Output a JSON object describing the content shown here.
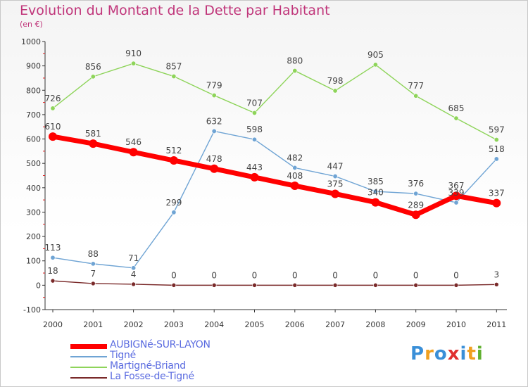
{
  "title": "Evolution du Montant de la Dette par Habitant",
  "subtitle": "(en €)",
  "logo": {
    "letters": [
      "P",
      "r",
      "o",
      "x",
      "i",
      "t",
      "i"
    ],
    "colors": [
      "#3a8fd8",
      "#f0a020",
      "#3a8fd8",
      "#e03030",
      "#3a8fd8",
      "#f0a020",
      "#60b030"
    ]
  },
  "chart_data": {
    "type": "line",
    "x": [
      "2000",
      "2001",
      "2002",
      "2003",
      "2004",
      "2005",
      "2006",
      "2007",
      "2008",
      "2009",
      "2010",
      "2011"
    ],
    "ylim": [
      -100,
      1000
    ],
    "yticks": [
      "-100",
      "0",
      "100",
      "200",
      "300",
      "400",
      "500",
      "600",
      "700",
      "800",
      "900",
      "1000"
    ],
    "grid": false,
    "legend_position": "bottom-left",
    "series": [
      {
        "name": "AUBIGNé-SUR-LAYON",
        "color": "#ff0000",
        "values": [
          610,
          581,
          546,
          512,
          478,
          443,
          408,
          375,
          340,
          289,
          367,
          337
        ],
        "labels": [
          "610",
          "581",
          "546",
          "512",
          "478",
          "443",
          "408",
          "375",
          "340",
          "289",
          "367",
          "337"
        ]
      },
      {
        "name": "Tigné",
        "color": "#6fa4d4",
        "values": [
          113,
          88,
          71,
          299,
          632,
          598,
          482,
          447,
          385,
          376,
          339,
          518
        ],
        "labels": [
          "113",
          "88",
          "71",
          "299",
          "632",
          "598",
          "482",
          "447",
          "385",
          "376",
          "339",
          "518"
        ]
      },
      {
        "name": "Martigné-Briand",
        "color": "#8ed45a",
        "values": [
          726,
          856,
          910,
          857,
          779,
          707,
          880,
          798,
          905,
          777,
          685,
          597
        ],
        "labels": [
          "726",
          "856",
          "910",
          "857",
          "779",
          "707",
          "880",
          "798",
          "905",
          "777",
          "685",
          "597"
        ]
      },
      {
        "name": "La Fosse-de-Tigné",
        "color": "#7a2a2a",
        "values": [
          18,
          7,
          4,
          0,
          0,
          0,
          0,
          0,
          0,
          0,
          0,
          3
        ],
        "labels": [
          "18",
          "7",
          "4",
          "0",
          "0",
          "0",
          "0",
          "0",
          "0",
          "0",
          "0",
          "3"
        ]
      }
    ]
  }
}
